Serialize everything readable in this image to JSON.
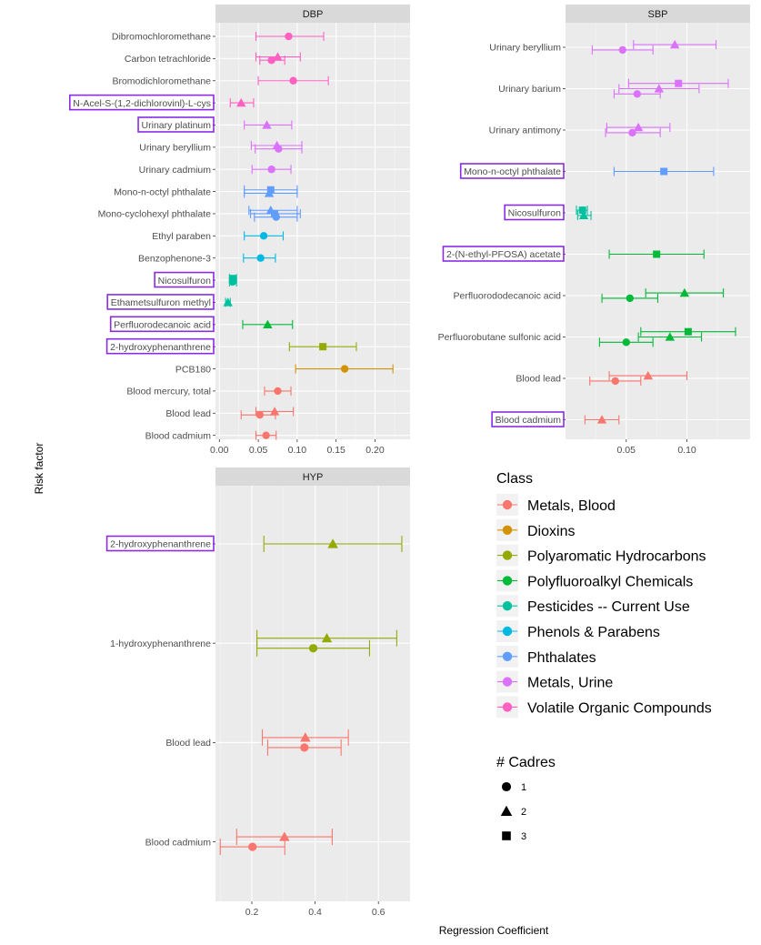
{
  "chart_data": {
    "type": "forest",
    "ylabel": "Risk factor",
    "xlabel": "Regression Coefficient",
    "class_colors": {
      "Metals, Blood": "#F8766D",
      "Dioxins": "#D39200",
      "Polyaromatic Hydrocarbons": "#93AA00",
      "Polyfluoroalkyl Chemicals": "#00BA38",
      "Pesticides -- Current Use": "#00C19F",
      "Phenols & Parabens": "#00B9E3",
      "Phthalates": "#619CFF",
      "Metals, Urine": "#DB72FB",
      "Volatile Organic Compounds": "#FF61C3"
    },
    "legend": {
      "class_title": "Class",
      "classes": [
        "Metals, Blood",
        "Dioxins",
        "Polyaromatic Hydrocarbons",
        "Polyfluoroalkyl Chemicals",
        "Pesticides -- Current Use",
        "Phenols & Parabens",
        "Phthalates",
        "Metals, Urine",
        "Volatile Organic Compounds"
      ],
      "shape_title": "# Cadres",
      "shapes": [
        {
          "label": "1",
          "shape": "circle"
        },
        {
          "label": "2",
          "shape": "triangle"
        },
        {
          "label": "3",
          "shape": "square"
        }
      ]
    },
    "panels": [
      {
        "title": "DBP",
        "xlim": [
          -0.005,
          0.245
        ],
        "xticks": [
          0.0,
          0.05,
          0.1,
          0.15,
          0.2
        ],
        "xtick_labels": [
          "0.00",
          "0.05",
          "0.10",
          "0.15",
          "0.20"
        ],
        "factors": [
          {
            "label": "Dibromochloromethane",
            "highlight": false,
            "points": [
              {
                "cls": "Volatile Organic Compounds",
                "shape": 1,
                "est": 0.089,
                "lo": 0.047,
                "hi": 0.134
              }
            ]
          },
          {
            "label": "Carbon tetrachloride",
            "highlight": false,
            "points": [
              {
                "cls": "Volatile Organic Compounds",
                "shape": 2,
                "est": 0.075,
                "lo": 0.047,
                "hi": 0.104
              },
              {
                "cls": "Volatile Organic Compounds",
                "shape": 1,
                "est": 0.067,
                "lo": 0.052,
                "hi": 0.084
              }
            ]
          },
          {
            "label": "Bromodichloromethane",
            "highlight": false,
            "points": [
              {
                "cls": "Volatile Organic Compounds",
                "shape": 1,
                "est": 0.095,
                "lo": 0.05,
                "hi": 0.14
              }
            ]
          },
          {
            "label": "N-Acel-S-(1,2-dichlorovinl)-L-cys",
            "highlight": true,
            "points": [
              {
                "cls": "Volatile Organic Compounds",
                "shape": 2,
                "est": 0.028,
                "lo": 0.014,
                "hi": 0.044
              }
            ]
          },
          {
            "label": "Urinary platinum",
            "highlight": true,
            "points": [
              {
                "cls": "Metals, Urine",
                "shape": 2,
                "est": 0.061,
                "lo": 0.032,
                "hi": 0.093
              }
            ]
          },
          {
            "label": "Urinary beryllium",
            "highlight": false,
            "points": [
              {
                "cls": "Metals, Urine",
                "shape": 2,
                "est": 0.074,
                "lo": 0.041,
                "hi": 0.106
              },
              {
                "cls": "Metals, Urine",
                "shape": 1,
                "est": 0.076,
                "lo": 0.046,
                "hi": 0.106
              }
            ]
          },
          {
            "label": "Urinary cadmium",
            "highlight": false,
            "points": [
              {
                "cls": "Metals, Urine",
                "shape": 1,
                "est": 0.067,
                "lo": 0.042,
                "hi": 0.092
              }
            ]
          },
          {
            "label": "Mono-n-octyl phthalate",
            "highlight": false,
            "points": [
              {
                "cls": "Phthalates",
                "shape": 3,
                "est": 0.066,
                "lo": 0.032,
                "hi": 0.1
              },
              {
                "cls": "Phthalates",
                "shape": 2,
                "est": 0.064,
                "lo": 0.032,
                "hi": 0.1
              }
            ]
          },
          {
            "label": "Mono-cyclohexyl phthalate",
            "highlight": false,
            "points": [
              {
                "cls": "Phthalates",
                "shape": 2,
                "est": 0.066,
                "lo": 0.038,
                "hi": 0.1
              },
              {
                "cls": "Phthalates",
                "shape": 3,
                "est": 0.071,
                "lo": 0.04,
                "hi": 0.104
              },
              {
                "cls": "Phthalates",
                "shape": 1,
                "est": 0.073,
                "lo": 0.045,
                "hi": 0.1
              }
            ]
          },
          {
            "label": "Ethyl paraben",
            "highlight": false,
            "points": [
              {
                "cls": "Phenols & Parabens",
                "shape": 1,
                "est": 0.057,
                "lo": 0.032,
                "hi": 0.082
              }
            ]
          },
          {
            "label": "Benzophenone-3",
            "highlight": false,
            "points": [
              {
                "cls": "Phenols & Parabens",
                "shape": 1,
                "est": 0.053,
                "lo": 0.031,
                "hi": 0.072
              }
            ]
          },
          {
            "label": "Nicosulfuron",
            "highlight": true,
            "points": [
              {
                "cls": "Pesticides -- Current Use",
                "shape": 3,
                "est": 0.017,
                "lo": 0.013,
                "hi": 0.022
              },
              {
                "cls": "Pesticides -- Current Use",
                "shape": 1,
                "est": 0.017,
                "lo": 0.013,
                "hi": 0.022
              }
            ]
          },
          {
            "label": "Ethametsulfuron methyl",
            "highlight": true,
            "points": [
              {
                "cls": "Pesticides -- Current Use",
                "shape": 2,
                "est": 0.011,
                "lo": 0.008,
                "hi": 0.014
              }
            ]
          },
          {
            "label": "Perfluorodecanoic acid",
            "highlight": true,
            "points": [
              {
                "cls": "Polyfluoroalkyl Chemicals",
                "shape": 2,
                "est": 0.062,
                "lo": 0.03,
                "hi": 0.094
              }
            ]
          },
          {
            "label": "2-hydroxyphenanthrene",
            "highlight": true,
            "points": [
              {
                "cls": "Polyaromatic Hydrocarbons",
                "shape": 3,
                "est": 0.133,
                "lo": 0.09,
                "hi": 0.176
              }
            ]
          },
          {
            "label": "PCB180",
            "highlight": false,
            "points": [
              {
                "cls": "Dioxins",
                "shape": 1,
                "est": 0.161,
                "lo": 0.098,
                "hi": 0.223
              }
            ]
          },
          {
            "label": "Blood mercury, total",
            "highlight": false,
            "points": [
              {
                "cls": "Metals, Blood",
                "shape": 1,
                "est": 0.075,
                "lo": 0.058,
                "hi": 0.092
              }
            ]
          },
          {
            "label": "Blood lead",
            "highlight": false,
            "points": [
              {
                "cls": "Metals, Blood",
                "shape": 2,
                "est": 0.071,
                "lo": 0.047,
                "hi": 0.095
              },
              {
                "cls": "Metals, Blood",
                "shape": 1,
                "est": 0.052,
                "lo": 0.028,
                "hi": 0.072
              }
            ]
          },
          {
            "label": "Blood cadmium",
            "highlight": false,
            "points": [
              {
                "cls": "Metals, Blood",
                "shape": 1,
                "est": 0.06,
                "lo": 0.047,
                "hi": 0.073
              }
            ]
          }
        ]
      },
      {
        "title": "SBP",
        "xlim": [
          0.0,
          0.152
        ],
        "xticks": [
          0.05,
          0.1
        ],
        "xtick_labels": [
          "0.05",
          "0.10"
        ],
        "factors": [
          {
            "label": "Urinary beryllium",
            "highlight": false,
            "points": [
              {
                "cls": "Metals, Urine",
                "shape": 2,
                "est": 0.09,
                "lo": 0.056,
                "hi": 0.124
              },
              {
                "cls": "Metals, Urine",
                "shape": 1,
                "est": 0.047,
                "lo": 0.022,
                "hi": 0.072
              }
            ]
          },
          {
            "label": "Urinary barium",
            "highlight": false,
            "points": [
              {
                "cls": "Metals, Urine",
                "shape": 3,
                "est": 0.093,
                "lo": 0.052,
                "hi": 0.134
              },
              {
                "cls": "Metals, Urine",
                "shape": 2,
                "est": 0.077,
                "lo": 0.044,
                "hi": 0.11
              },
              {
                "cls": "Metals, Urine",
                "shape": 1,
                "est": 0.059,
                "lo": 0.04,
                "hi": 0.078
              }
            ]
          },
          {
            "label": "Urinary antimony",
            "highlight": false,
            "points": [
              {
                "cls": "Metals, Urine",
                "shape": 2,
                "est": 0.06,
                "lo": 0.034,
                "hi": 0.086
              },
              {
                "cls": "Metals, Urine",
                "shape": 1,
                "est": 0.055,
                "lo": 0.033,
                "hi": 0.078
              }
            ]
          },
          {
            "label": "Mono-n-octyl phthalate",
            "highlight": true,
            "points": [
              {
                "cls": "Phthalates",
                "shape": 3,
                "est": 0.081,
                "lo": 0.04,
                "hi": 0.122
              }
            ]
          },
          {
            "label": "Nicosulfuron",
            "highlight": true,
            "points": [
              {
                "cls": "Pesticides -- Current Use",
                "shape": 3,
                "est": 0.014,
                "lo": 0.009,
                "hi": 0.018
              },
              {
                "cls": "Pesticides -- Current Use",
                "shape": 2,
                "est": 0.015,
                "lo": 0.01,
                "hi": 0.021
              }
            ]
          },
          {
            "label": "2-(N-ethyl-PFOSA) acetate",
            "highlight": true,
            "points": [
              {
                "cls": "Polyfluoroalkyl Chemicals",
                "shape": 3,
                "est": 0.075,
                "lo": 0.036,
                "hi": 0.114
              }
            ]
          },
          {
            "label": "Perfluorododecanoic acid",
            "highlight": false,
            "points": [
              {
                "cls": "Polyfluoroalkyl Chemicals",
                "shape": 2,
                "est": 0.098,
                "lo": 0.066,
                "hi": 0.13
              },
              {
                "cls": "Polyfluoroalkyl Chemicals",
                "shape": 1,
                "est": 0.053,
                "lo": 0.03,
                "hi": 0.076
              }
            ]
          },
          {
            "label": "Perfluorobutane sulfonic acid",
            "highlight": false,
            "points": [
              {
                "cls": "Polyfluoroalkyl Chemicals",
                "shape": 3,
                "est": 0.101,
                "lo": 0.062,
                "hi": 0.14
              },
              {
                "cls": "Polyfluoroalkyl Chemicals",
                "shape": 2,
                "est": 0.086,
                "lo": 0.06,
                "hi": 0.112
              },
              {
                "cls": "Polyfluoroalkyl Chemicals",
                "shape": 1,
                "est": 0.05,
                "lo": 0.028,
                "hi": 0.072
              }
            ]
          },
          {
            "label": "Blood lead",
            "highlight": false,
            "points": [
              {
                "cls": "Metals, Blood",
                "shape": 2,
                "est": 0.068,
                "lo": 0.036,
                "hi": 0.1
              },
              {
                "cls": "Metals, Blood",
                "shape": 1,
                "est": 0.041,
                "lo": 0.02,
                "hi": 0.062
              }
            ]
          },
          {
            "label": "Blood cadmium",
            "highlight": true,
            "points": [
              {
                "cls": "Metals, Blood",
                "shape": 2,
                "est": 0.03,
                "lo": 0.016,
                "hi": 0.044
              }
            ]
          }
        ]
      },
      {
        "title": "HYP",
        "xlim": [
          0.085,
          0.7
        ],
        "xticks": [
          0.2,
          0.4,
          0.6
        ],
        "xtick_labels": [
          "0.2",
          "0.4",
          "0.6"
        ],
        "factors": [
          {
            "label": "2-hydroxyphenanthrene",
            "highlight": true,
            "points": [
              {
                "cls": "Polyaromatic Hydrocarbons",
                "shape": 2,
                "est": 0.456,
                "lo": 0.238,
                "hi": 0.674
              }
            ]
          },
          {
            "label": "1-hydroxyphenanthrene",
            "highlight": false,
            "points": [
              {
                "cls": "Polyaromatic Hydrocarbons",
                "shape": 2,
                "est": 0.437,
                "lo": 0.216,
                "hi": 0.658
              },
              {
                "cls": "Polyaromatic Hydrocarbons",
                "shape": 1,
                "est": 0.394,
                "lo": 0.216,
                "hi": 0.572
              }
            ]
          },
          {
            "label": "Blood lead",
            "highlight": false,
            "points": [
              {
                "cls": "Metals, Blood",
                "shape": 2,
                "est": 0.369,
                "lo": 0.233,
                "hi": 0.505
              },
              {
                "cls": "Metals, Blood",
                "shape": 1,
                "est": 0.366,
                "lo": 0.25,
                "hi": 0.482
              }
            ]
          },
          {
            "label": "Blood cadmium",
            "highlight": false,
            "points": [
              {
                "cls": "Metals, Blood",
                "shape": 2,
                "est": 0.303,
                "lo": 0.152,
                "hi": 0.454
              },
              {
                "cls": "Metals, Blood",
                "shape": 1,
                "est": 0.202,
                "lo": 0.1,
                "hi": 0.304
              }
            ]
          }
        ]
      }
    ]
  }
}
